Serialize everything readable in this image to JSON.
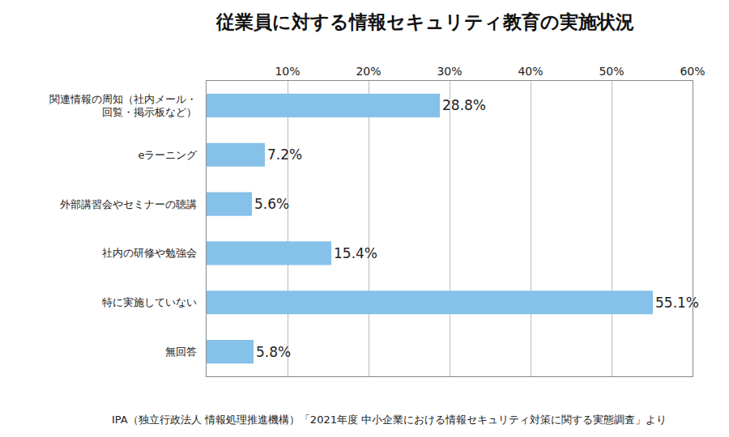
{
  "chart_data": {
    "type": "bar",
    "orientation": "horizontal",
    "title": "従業員に対する情報セキュリティ教育の実施状況",
    "categories": [
      "関連情報の周知（社内メール・\n回覧・掲示板など）",
      "eラーニング",
      "外部講習会やセミナーの聴講",
      "社内の研修や勉強会",
      "特に実施していない",
      "無回答"
    ],
    "values": [
      28.8,
      7.2,
      5.6,
      15.4,
      55.1,
      5.8
    ],
    "value_labels": [
      "28.8%",
      "7.2%",
      "5.6%",
      "15.4%",
      "55.1%",
      "5.8%"
    ],
    "color": "#85c1e9",
    "xlim": [
      0,
      60
    ],
    "xticks": [
      {
        "value": 10,
        "label": "10%"
      },
      {
        "value": 20,
        "label": "20%"
      },
      {
        "value": 30,
        "label": "30%"
      },
      {
        "value": 40,
        "label": "40%"
      },
      {
        "value": 50,
        "label": "50%"
      },
      {
        "value": 60,
        "label": "60%"
      }
    ],
    "grid": true,
    "data_labels": true,
    "annotations": [
      "IPA（独立行政法人 情報処理推進機構）「2021年度 中小企業における情報セキュリティ対策に関する実態調査」より"
    ]
  }
}
